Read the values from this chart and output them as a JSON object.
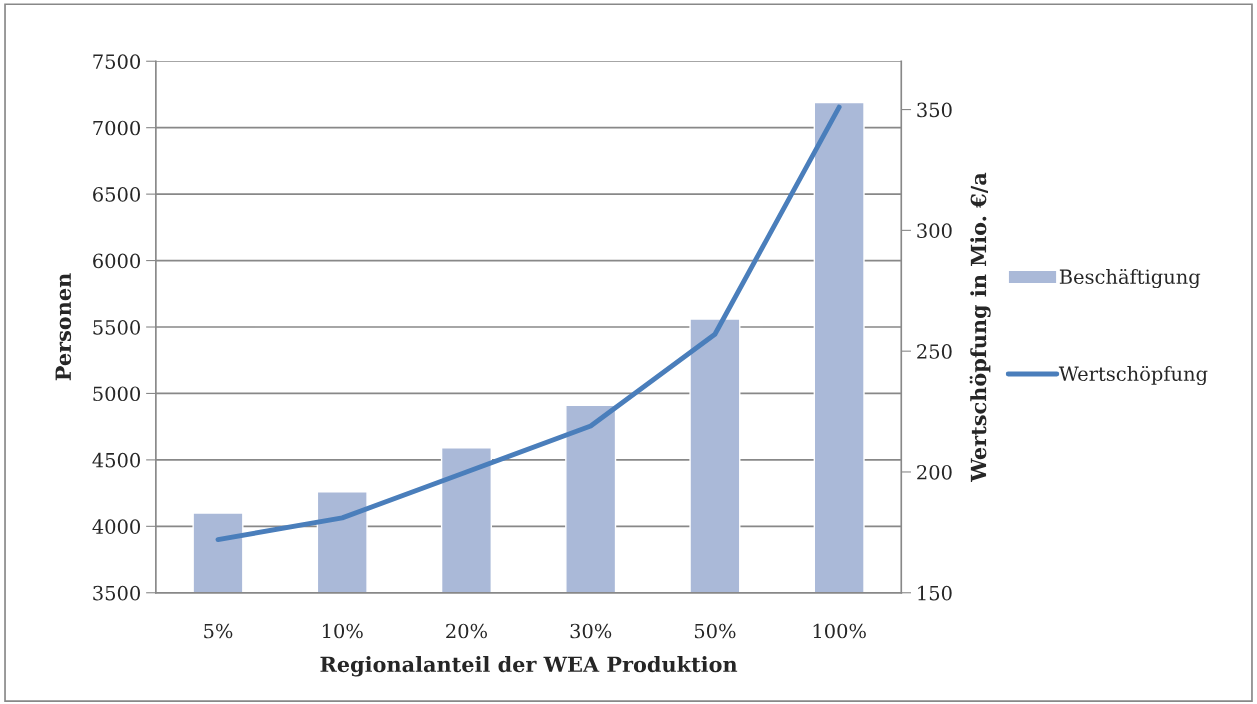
{
  "chart_data": {
    "type": "bar",
    "xlabel": "Regionalanteil der WEA Produktion",
    "ylabel": "Personen",
    "y2label": "Wertschöpfung in Mio. €/a",
    "categories": [
      "5%",
      "10%",
      "20%",
      "30%",
      "50%",
      "100%"
    ],
    "series": [
      {
        "name": "Beschäftigung",
        "color": "#aab9d8",
        "values": [
          4100,
          4260,
          4590,
          4910,
          5560,
          7190
        ]
      },
      {
        "name": "Wertschöpfung",
        "type": "line",
        "axis": "y2",
        "color": "#4a7ebb",
        "values": [
          172,
          181,
          200,
          219,
          257,
          351
        ]
      }
    ],
    "ylim": [
      3500,
      7500
    ],
    "yticks": [
      3500,
      4000,
      4500,
      5000,
      5500,
      6000,
      6500,
      7000,
      7500
    ],
    "y2lim": [
      150,
      370
    ],
    "y2ticks": [
      150,
      200,
      250,
      300,
      350
    ],
    "grid": "y",
    "legend": "right",
    "marker": "none",
    "line_style": "solid"
  }
}
